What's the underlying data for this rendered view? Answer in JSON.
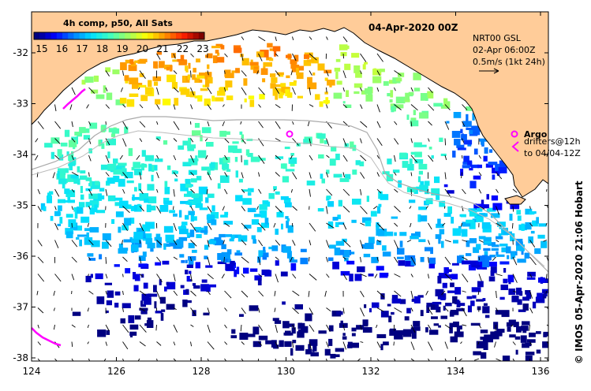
{
  "map": {
    "date_title": "04-Apr-2020 00Z",
    "colorbar": {
      "label": "4h comp, p50, All Sats",
      "ticks": [
        "15",
        "16",
        "17",
        "18",
        "19",
        "20",
        "21",
        "22",
        "23"
      ],
      "colors": [
        "#000080",
        "#0000ff",
        "#0080ff",
        "#00e0ff",
        "#40ffc0",
        "#a0ff60",
        "#ffff00",
        "#ff9000",
        "#ff2000",
        "#800000"
      ]
    },
    "current_info": {
      "line1": "NRT00 GSL",
      "line2": "02-Apr 06:00Z",
      "line3": "0.5m/s (1kt 24h)"
    },
    "legend": {
      "argo_label": "Argo",
      "drifters_line1": "drifters@12h",
      "drifters_line2": "to 04/04-12Z",
      "argo_color": "#ff00ff"
    },
    "credit": "© IMOS 05-Apr-2020 21:06 Hobart",
    "x_ticks": [
      "124",
      "126",
      "128",
      "130",
      "132",
      "134",
      "136"
    ],
    "y_ticks": [
      "-32",
      "-33",
      "-34",
      "-35",
      "-36",
      "-37",
      "-38"
    ],
    "land_color": "#ffcc99"
  }
}
